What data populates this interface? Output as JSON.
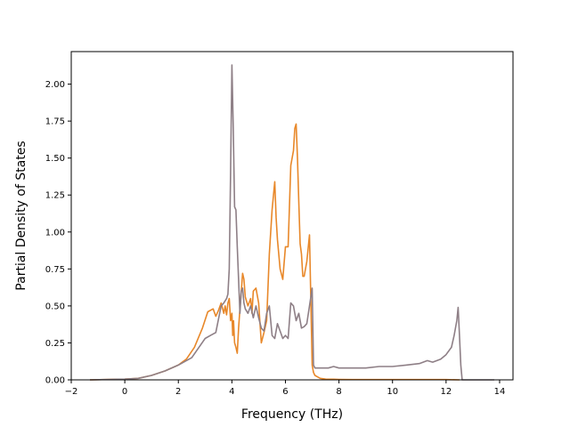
{
  "chart_data": {
    "type": "line",
    "title": "",
    "xlabel": "Frequency (THz)",
    "ylabel": "Partial Density of States",
    "xlim": [
      -2,
      14.5
    ],
    "ylim": [
      0,
      2.22
    ],
    "xticks": [
      -2,
      0,
      2,
      4,
      6,
      8,
      10,
      12,
      14
    ],
    "xtick_labels": [
      "−2",
      "0",
      "2",
      "4",
      "6",
      "8",
      "10",
      "12",
      "14"
    ],
    "yticks": [
      0,
      0.25,
      0.5,
      0.75,
      1.0,
      1.25,
      1.5,
      1.75,
      2.0
    ],
    "ytick_labels": [
      "0.00",
      "0.25",
      "0.50",
      "0.75",
      "1.00",
      "1.25",
      "1.50",
      "1.75",
      "2.00"
    ],
    "grid": false,
    "legend": "none",
    "series": [
      {
        "color": "#e8882a",
        "x": [
          -1.3,
          0,
          0.5,
          1.0,
          1.5,
          2.0,
          2.3,
          2.6,
          2.9,
          3.1,
          3.3,
          3.4,
          3.5,
          3.6,
          3.7,
          3.75,
          3.8,
          3.85,
          3.9,
          3.95,
          4.0,
          4.03,
          4.06,
          4.1,
          4.15,
          4.2,
          4.25,
          4.3,
          4.35,
          4.4,
          4.45,
          4.5,
          4.6,
          4.7,
          4.75,
          4.8,
          4.9,
          5.0,
          5.1,
          5.2,
          5.3,
          5.4,
          5.5,
          5.6,
          5.65,
          5.7,
          5.75,
          5.8,
          5.9,
          6.0,
          6.1,
          6.2,
          6.3,
          6.35,
          6.4,
          6.45,
          6.5,
          6.55,
          6.6,
          6.65,
          6.7,
          6.8,
          6.9,
          7.0,
          7.05,
          7.1,
          7.2,
          7.3,
          7.5,
          7.8,
          8.0,
          8.5,
          9.0,
          10.0,
          11.0,
          12.0,
          12.5
        ],
        "y": [
          0,
          0.005,
          0.01,
          0.03,
          0.06,
          0.1,
          0.14,
          0.22,
          0.35,
          0.46,
          0.48,
          0.43,
          0.47,
          0.52,
          0.45,
          0.5,
          0.44,
          0.52,
          0.55,
          0.4,
          0.45,
          0.3,
          0.4,
          0.25,
          0.22,
          0.18,
          0.35,
          0.48,
          0.6,
          0.72,
          0.68,
          0.56,
          0.5,
          0.55,
          0.45,
          0.6,
          0.62,
          0.52,
          0.25,
          0.32,
          0.4,
          0.85,
          1.15,
          1.34,
          1.1,
          0.95,
          0.85,
          0.75,
          0.68,
          0.9,
          0.9,
          1.45,
          1.55,
          1.7,
          1.73,
          1.5,
          1.2,
          0.92,
          0.85,
          0.7,
          0.7,
          0.8,
          0.98,
          0.1,
          0.05,
          0.03,
          0.02,
          0.01,
          0.005,
          0.004,
          0.003,
          0.002,
          0.002,
          0.002,
          0.002,
          0.002,
          0
        ]
      },
      {
        "color": "#8e7f86",
        "x": [
          -1.3,
          0,
          0.5,
          1.0,
          1.5,
          2.0,
          2.5,
          3.0,
          3.2,
          3.4,
          3.6,
          3.7,
          3.8,
          3.85,
          3.9,
          3.95,
          4.0,
          4.05,
          4.1,
          4.15,
          4.2,
          4.3,
          4.35,
          4.4,
          4.45,
          4.5,
          4.6,
          4.7,
          4.8,
          4.9,
          5.0,
          5.1,
          5.2,
          5.3,
          5.4,
          5.5,
          5.6,
          5.7,
          5.8,
          5.9,
          6.0,
          6.1,
          6.2,
          6.3,
          6.4,
          6.5,
          6.6,
          6.7,
          6.8,
          6.9,
          7.0,
          7.05,
          7.1,
          7.3,
          7.6,
          7.8,
          8.0,
          8.5,
          9.0,
          9.5,
          10.0,
          10.5,
          11.0,
          11.3,
          11.5,
          11.8,
          12.0,
          12.2,
          12.3,
          12.4,
          12.45,
          12.5,
          12.55,
          12.6,
          13.8
        ],
        "y": [
          0,
          0.005,
          0.01,
          0.03,
          0.06,
          0.1,
          0.15,
          0.28,
          0.3,
          0.32,
          0.5,
          0.52,
          0.55,
          0.58,
          0.75,
          1.4,
          2.13,
          1.7,
          1.17,
          1.15,
          0.9,
          0.45,
          0.6,
          0.62,
          0.52,
          0.48,
          0.45,
          0.5,
          0.42,
          0.5,
          0.42,
          0.35,
          0.33,
          0.45,
          0.5,
          0.3,
          0.28,
          0.38,
          0.33,
          0.28,
          0.3,
          0.28,
          0.52,
          0.5,
          0.4,
          0.45,
          0.35,
          0.36,
          0.38,
          0.5,
          0.62,
          0.1,
          0.08,
          0.08,
          0.08,
          0.09,
          0.08,
          0.08,
          0.08,
          0.09,
          0.09,
          0.1,
          0.11,
          0.13,
          0.12,
          0.14,
          0.17,
          0.22,
          0.3,
          0.4,
          0.49,
          0.3,
          0.1,
          0.0,
          0
        ]
      }
    ]
  }
}
